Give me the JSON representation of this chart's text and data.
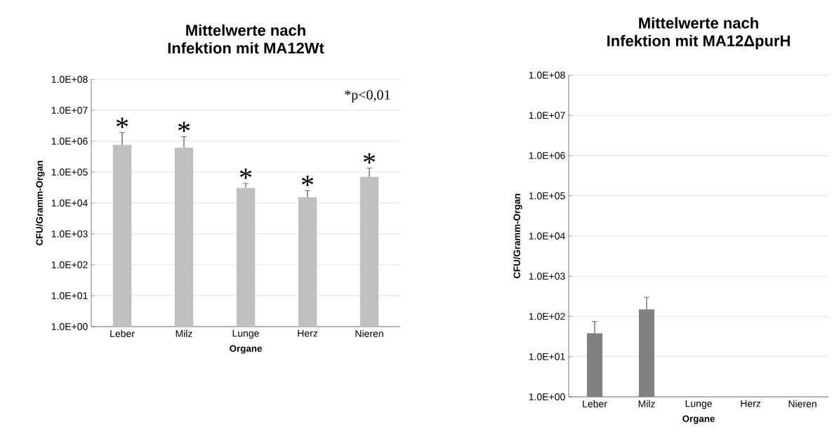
{
  "chart_data": [
    {
      "type": "bar",
      "title": "Mittelwerte nach\nInfektion mit MA12Wt",
      "xlabel": "Organe",
      "ylabel": "CFU/Gramm-Organ",
      "categories": [
        "Leber",
        "Milz",
        "Lunge",
        "Herz",
        "Nieren"
      ],
      "values": [
        760000,
        620000,
        31000,
        15500,
        70000
      ],
      "errors": [
        1140000,
        780000,
        12000,
        9500,
        65000
      ],
      "color": "#c0c0c0",
      "log": true,
      "grid": "y",
      "ylim": [
        1,
        100000000
      ],
      "yticks": [
        {
          "value": 1,
          "label": "1.0E+00"
        },
        {
          "value": 10,
          "label": "1.0E+01"
        },
        {
          "value": 100,
          "label": "1.0E+02"
        },
        {
          "value": 1000,
          "label": "1.0E+03"
        },
        {
          "value": 10000,
          "label": "1.0E+04"
        },
        {
          "value": 100000,
          "label": "1.0E+05"
        },
        {
          "value": 1000000,
          "label": "1.0E+06"
        },
        {
          "value": 10000000,
          "label": "1.0E+07"
        },
        {
          "value": 100000000,
          "label": "1.0E+08"
        }
      ],
      "annotations": [
        "*",
        "*",
        "*",
        "*",
        "*",
        "*p<0,01"
      ]
    },
    {
      "type": "bar",
      "title": "Mittelwerte nach\nInfektion mit MA12ΔpurH",
      "xlabel": "Organe",
      "ylabel": "CFU/Gramm-Organ",
      "categories": [
        "Leber",
        "Milz",
        "Lunge",
        "Herz",
        "Nieren"
      ],
      "values": [
        38,
        150,
        null,
        null,
        null
      ],
      "errors": [
        37,
        150,
        null,
        null,
        null
      ],
      "color": "#808080",
      "log": true,
      "grid": "y",
      "ylim": [
        1,
        100000000
      ],
      "yticks": [
        {
          "value": 1,
          "label": "1.0E+00"
        },
        {
          "value": 10,
          "label": "1.0E+01"
        },
        {
          "value": 100,
          "label": "1.0E+02"
        },
        {
          "value": 1000,
          "label": "1.0E+03"
        },
        {
          "value": 10000,
          "label": "1.0E+04"
        },
        {
          "value": 100000,
          "label": "1.0E+05"
        },
        {
          "value": 1000000,
          "label": "1.0E+06"
        },
        {
          "value": 10000000,
          "label": "1.0E+07"
        },
        {
          "value": 100000000,
          "label": "1.0E+08"
        }
      ]
    }
  ]
}
